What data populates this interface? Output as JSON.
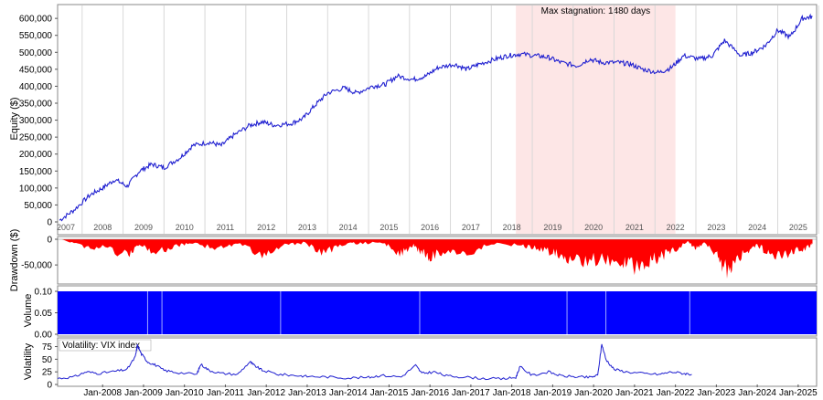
{
  "chart_data": [
    {
      "panel": "equity",
      "type": "line",
      "ylabel": "Equity ($)",
      "ylim": [
        0,
        630000
      ],
      "yticks": [
        0,
        50000,
        100000,
        150000,
        200000,
        250000,
        300000,
        350000,
        400000,
        450000,
        500000,
        550000,
        600000
      ],
      "ytick_labels": [
        "0",
        "50,000",
        "100,000",
        "150,000",
        "200,000",
        "250,000",
        "300,000",
        "350,000",
        "400,000",
        "450,000",
        "500,000",
        "550,000",
        "600,000"
      ],
      "year_labels": [
        "2007",
        "2008",
        "2009",
        "2010",
        "2011",
        "2012",
        "2013",
        "2014",
        "2015",
        "2016",
        "2017",
        "2018",
        "2019",
        "2020",
        "2021",
        "2022",
        "2023",
        "2024",
        "2025"
      ],
      "annotation": "Max stagnation: 1480 days",
      "stagnation_start": 2018.1,
      "stagnation_end": 2022.0,
      "series": [
        {
          "color": "#1f1fd0",
          "x": [
            2006.95,
            2007.3,
            2007.7,
            2008.0,
            2008.3,
            2008.6,
            2008.9,
            2009.2,
            2009.5,
            2009.9,
            2010.2,
            2010.6,
            2010.9,
            2011.2,
            2011.6,
            2011.9,
            2012.2,
            2012.6,
            2012.9,
            2013.2,
            2013.5,
            2013.9,
            2014.2,
            2014.6,
            2014.9,
            2015.2,
            2015.6,
            2015.9,
            2016.2,
            2016.6,
            2016.9,
            2017.2,
            2017.6,
            2017.9,
            2018.2,
            2018.6,
            2018.9,
            2019.2,
            2019.6,
            2019.9,
            2020.2,
            2020.6,
            2020.9,
            2021.2,
            2021.6,
            2021.9,
            2022.2,
            2022.6,
            2022.9,
            2023.2,
            2023.6,
            2023.9,
            2024.2,
            2024.5,
            2024.8,
            2025.1,
            2025.35
          ],
          "values": [
            5000,
            35000,
            80000,
            100000,
            125000,
            105000,
            150000,
            170000,
            160000,
            190000,
            225000,
            235000,
            225000,
            255000,
            285000,
            295000,
            285000,
            290000,
            305000,
            345000,
            380000,
            395000,
            380000,
            400000,
            405000,
            430000,
            420000,
            430000,
            455000,
            465000,
            450000,
            465000,
            480000,
            490000,
            495000,
            490000,
            485000,
            470000,
            460000,
            480000,
            470000,
            470000,
            465000,
            450000,
            440000,
            455000,
            490000,
            480000,
            490000,
            535000,
            490000,
            500000,
            520000,
            565000,
            545000,
            600000,
            605000
          ]
        }
      ]
    },
    {
      "panel": "drawdown",
      "type": "area",
      "ylabel": "Drawdown ($)",
      "ylim": [
        -80000,
        0
      ],
      "yticks": [
        0,
        -50000
      ],
      "ytick_labels": [
        "0",
        "-50,000"
      ],
      "color": "#ff0000",
      "series": [
        {
          "x": [
            2007.0,
            2007.5,
            2008.0,
            2008.6,
            2008.9,
            2009.3,
            2009.8,
            2010.2,
            2010.8,
            2011.3,
            2011.9,
            2012.4,
            2012.9,
            2013.4,
            2013.9,
            2014.3,
            2014.9,
            2015.3,
            2015.6,
            2015.8,
            2016.0,
            2016.4,
            2016.9,
            2017.5,
            2018.2,
            2018.6,
            2019.0,
            2019.3,
            2019.7,
            2020.2,
            2020.7,
            2021.0,
            2021.3,
            2021.6,
            2021.9,
            2022.3,
            2022.5,
            2022.7,
            2023.0,
            2023.2,
            2023.4,
            2023.7,
            2024.0,
            2024.3,
            2024.6,
            2024.9,
            2025.2,
            2025.35
          ],
          "values": [
            0,
            -15000,
            -20000,
            -38000,
            -12000,
            -30000,
            -15000,
            -8000,
            -22000,
            -10000,
            -35000,
            -15000,
            -8000,
            -30000,
            -12000,
            -8000,
            -10000,
            -35000,
            -15000,
            -30000,
            -42000,
            -25000,
            -35000,
            -10000,
            -15000,
            -20000,
            -30000,
            -40000,
            -50000,
            -45000,
            -55000,
            -62000,
            -55000,
            -40000,
            -30000,
            -5000,
            -20000,
            -10000,
            -35000,
            -70000,
            -60000,
            -30000,
            -12000,
            -35000,
            -40000,
            -25000,
            -20000,
            -10000
          ]
        }
      ]
    },
    {
      "panel": "volume",
      "type": "bar",
      "ylabel": "Volume",
      "ylim": [
        0,
        0.1
      ],
      "yticks": [
        0,
        0.05,
        0.1
      ],
      "ytick_labels": [
        "0.00",
        "0.05",
        "0.10"
      ],
      "color": "#0000ff",
      "series": [
        {
          "x_range": [
            2006.9,
            2025.45
          ],
          "value": 0.1
        }
      ]
    },
    {
      "panel": "volatility",
      "type": "line",
      "ylabel": "Volatility",
      "legend": "Volatility: VIX index",
      "ylim": [
        0,
        85
      ],
      "yticks": [
        0,
        25,
        50,
        75
      ],
      "ytick_labels": [
        "0",
        "25",
        "50",
        "75"
      ],
      "xtick_labels": [
        "Jan-2008",
        "Jan-2009",
        "Jan-2010",
        "Jan-2011",
        "Jan-2012",
        "Jan-2013",
        "Jan-2014",
        "Jan-2015",
        "Jan-2016",
        "Jan-2017",
        "Jan-2018",
        "Jan-2019",
        "Jan-2020",
        "Jan-2021",
        "Jan-2022",
        "Jan-2023",
        "Jan-2024",
        "Jan-2025"
      ],
      "color": "#1f1fd0",
      "series": [
        {
          "x": [
            2006.9,
            2007.3,
            2007.6,
            2007.9,
            2008.3,
            2008.6,
            2008.8,
            2008.85,
            2008.95,
            2009.1,
            2009.3,
            2009.5,
            2009.8,
            2010.3,
            2010.4,
            2010.6,
            2010.9,
            2011.3,
            2011.6,
            2011.7,
            2011.9,
            2012.3,
            2012.7,
            2013.0,
            2013.5,
            2014.0,
            2014.5,
            2014.8,
            2015.3,
            2015.65,
            2015.8,
            2016.1,
            2016.4,
            2016.8,
            2017.3,
            2017.8,
            2018.1,
            2018.2,
            2018.5,
            2018.9,
            2019.2,
            2019.6,
            2019.9,
            2020.1,
            2020.2,
            2020.3,
            2020.5,
            2020.8,
            2021.2,
            2021.6,
            2021.9,
            2022.2,
            2022.4
          ],
          "values": [
            12,
            15,
            25,
            22,
            26,
            30,
            55,
            78,
            60,
            45,
            38,
            28,
            24,
            20,
            40,
            28,
            22,
            20,
            45,
            38,
            28,
            20,
            18,
            16,
            15,
            13,
            14,
            18,
            15,
            38,
            22,
            25,
            17,
            15,
            12,
            11,
            14,
            35,
            18,
            25,
            17,
            15,
            14,
            18,
            80,
            50,
            30,
            25,
            22,
            20,
            25,
            22,
            20
          ]
        }
      ]
    }
  ]
}
